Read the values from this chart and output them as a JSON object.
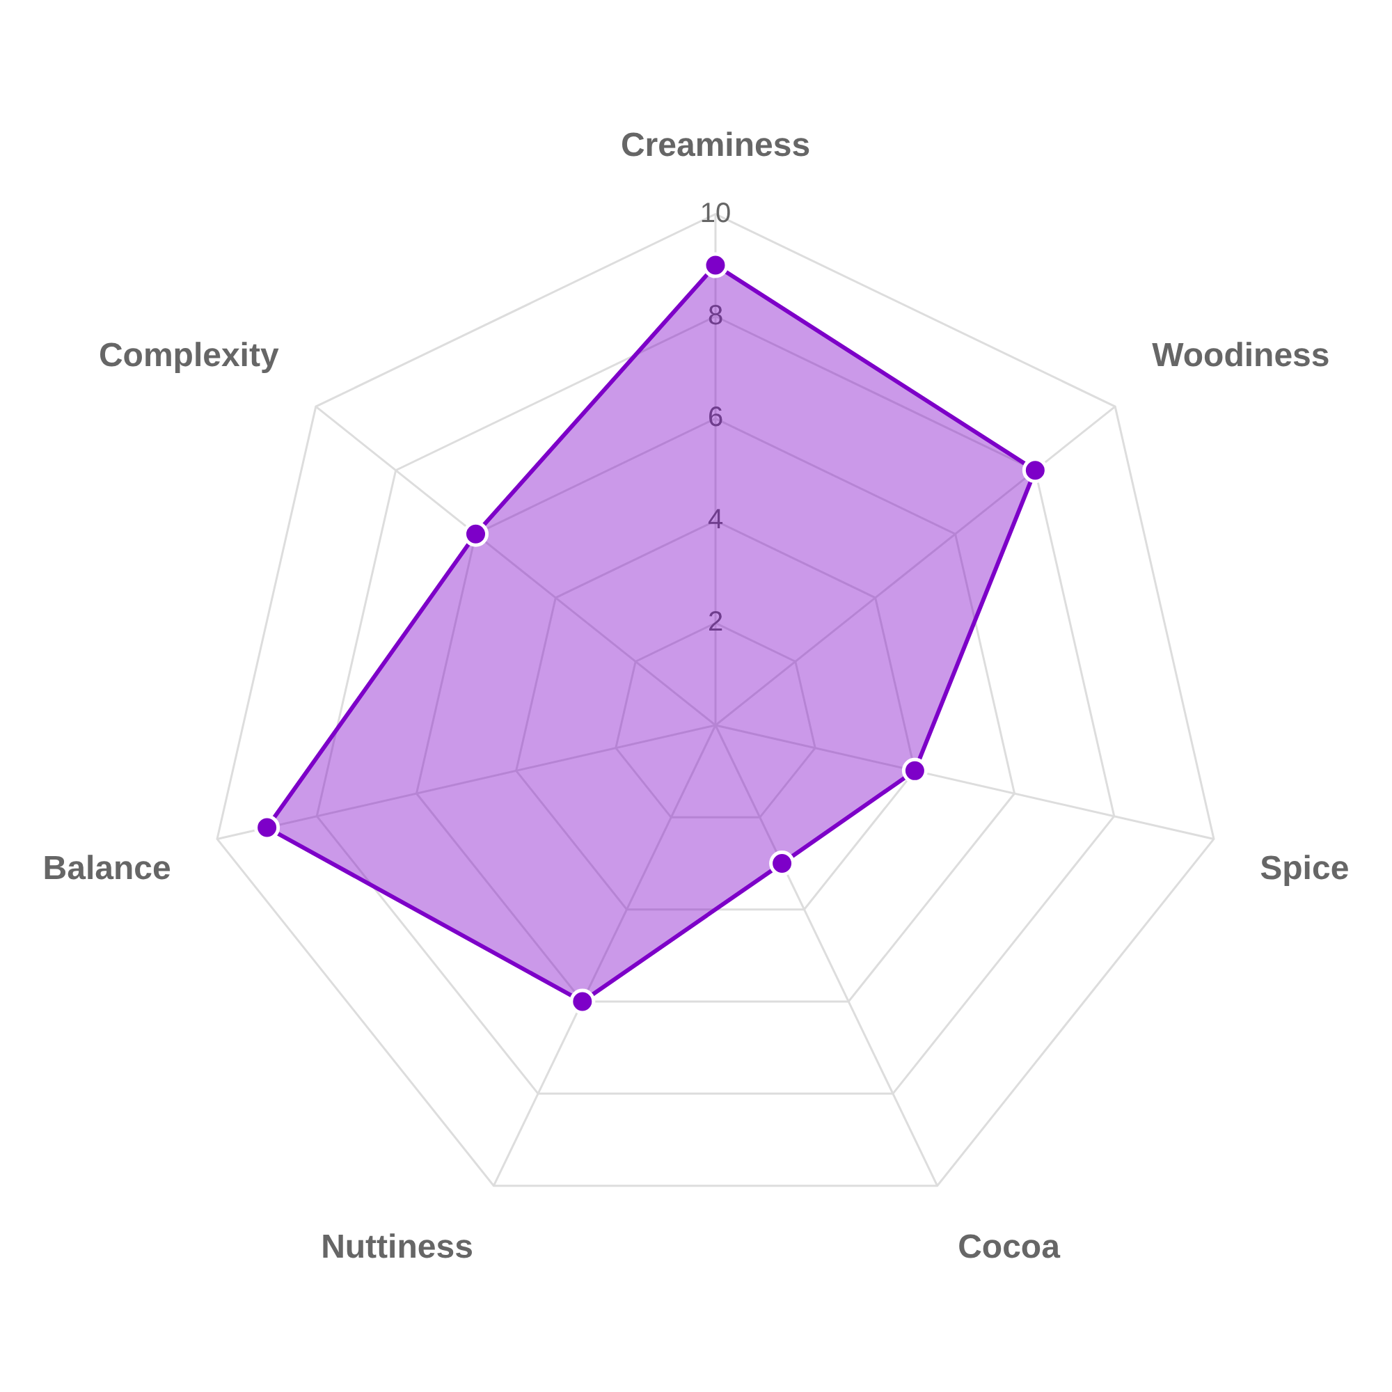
{
  "chart_data": {
    "type": "radar",
    "categories": [
      "Creaminess",
      "Woodiness",
      "Spice",
      "Cocoa",
      "Nuttiness",
      "Balance",
      "Complexity"
    ],
    "series": [
      {
        "color": "#7d00c8",
        "values": [
          9,
          8,
          4,
          3,
          6,
          9,
          6
        ]
      }
    ],
    "ylim": [
      0,
      10
    ],
    "yticks": [
      2,
      4,
      6,
      8,
      10
    ],
    "grid": true,
    "marker": "circle"
  }
}
